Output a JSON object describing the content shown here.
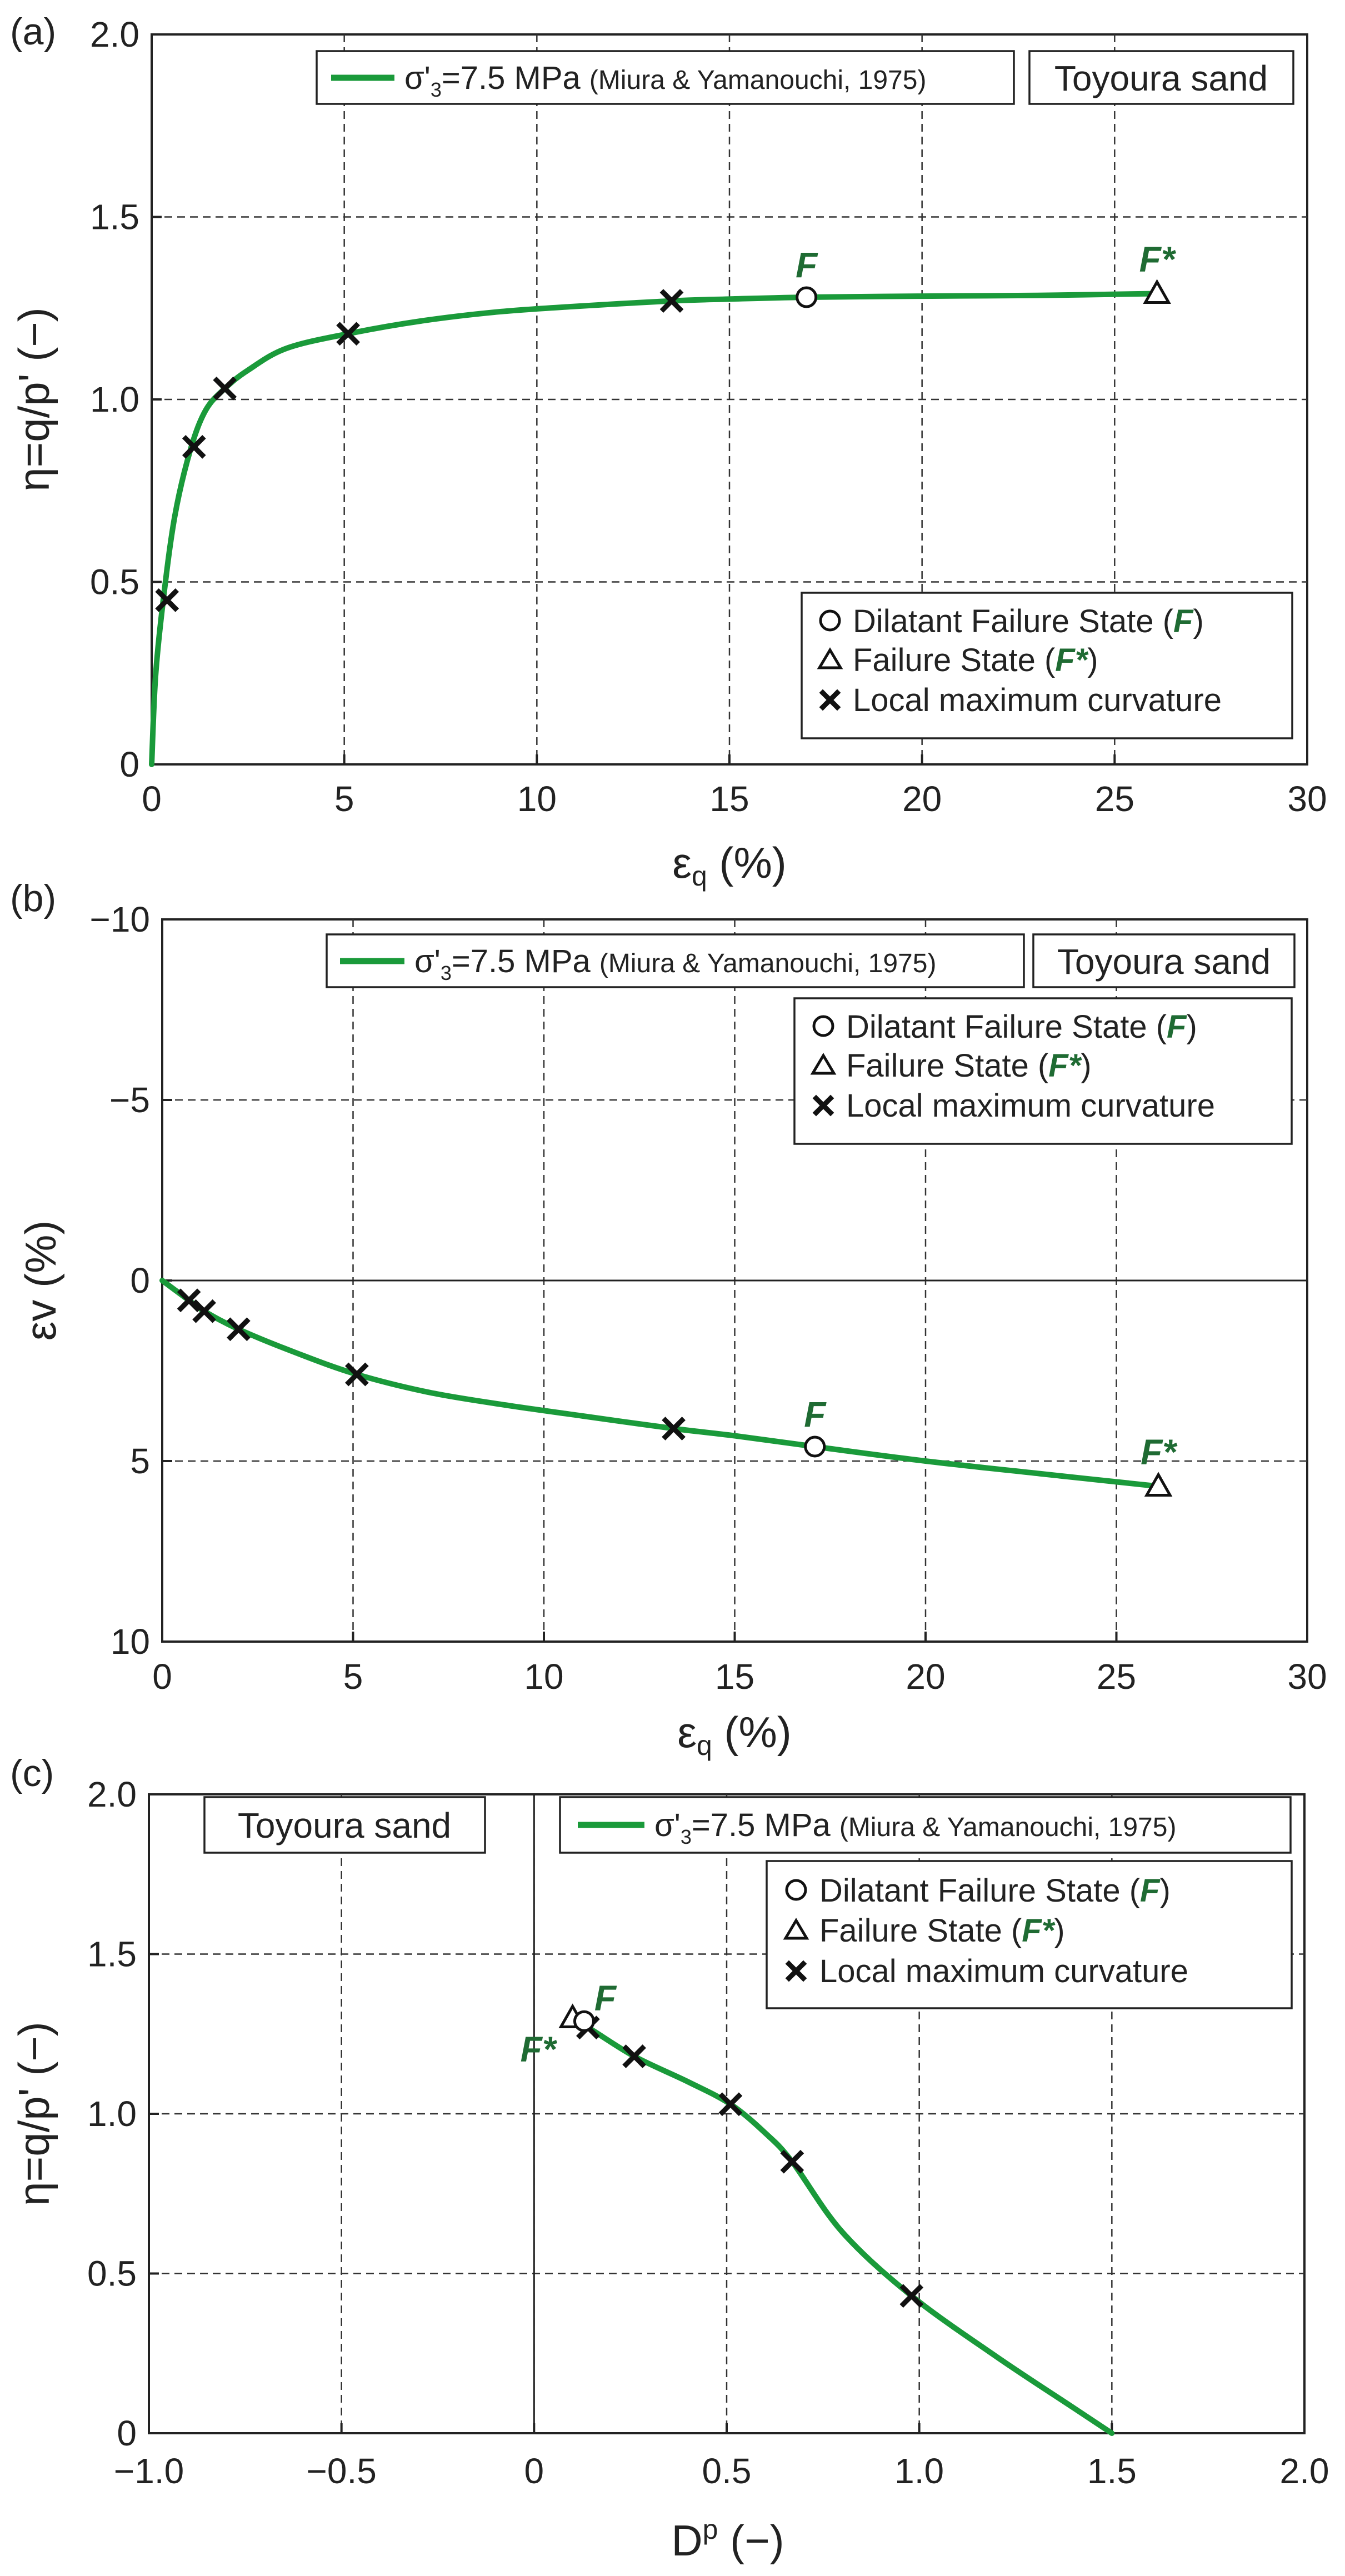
{
  "colors": {
    "curve": "#1a9a3a",
    "failure_label": "#1f6b33",
    "text": "#222222"
  },
  "chart_data": [
    {
      "panel": "(a)",
      "type": "line",
      "box_text": "Toyoura sand",
      "xlabel": "εq (%)",
      "ylabel": "η=q/p' (−)",
      "xlim": [
        0,
        30
      ],
      "ylim": [
        0,
        2.0
      ],
      "xticks": [
        "0",
        "5",
        "10",
        "15",
        "20",
        "25",
        "30"
      ],
      "yticks": [
        "0",
        "0.5",
        "1.0",
        "1.5",
        "2.0"
      ],
      "grid": true,
      "legend_position": "lower-right",
      "series": [
        {
          "name": "σ'3=7.5 MPa (Miura & Yamanouchi, 1975)",
          "x": [
            0,
            0.1,
            0.3,
            0.6,
            1.0,
            1.4,
            1.9,
            2.5,
            3.5,
            5.1,
            7.0,
            9.0,
            11.0,
            13.5,
            15.0,
            17.0,
            20.0,
            23.0,
            26.1
          ],
          "y": [
            0,
            0.24,
            0.45,
            0.68,
            0.86,
            0.97,
            1.03,
            1.08,
            1.14,
            1.18,
            1.215,
            1.24,
            1.255,
            1.27,
            1.275,
            1.28,
            1.283,
            1.285,
            1.29
          ]
        }
      ],
      "markers": {
        "dilatant_failure_F": {
          "x": 17.0,
          "y": 1.28,
          "label": "F"
        },
        "failure_Fstar": {
          "x": 26.1,
          "y": 1.29,
          "label": "F*"
        },
        "local_max_curvature": {
          "x": [
            0.4,
            1.1,
            1.9,
            5.1,
            13.5
          ],
          "y": [
            0.45,
            0.87,
            1.03,
            1.18,
            1.27
          ]
        }
      },
      "legend_entries": [
        "Dilatant Failure State (F)",
        "Failure State (F*)",
        "Local maximum curvature"
      ]
    },
    {
      "panel": "(b)",
      "type": "line",
      "box_text": "Toyoura sand",
      "xlabel": "εq (%)",
      "ylabel": "εv (%)",
      "xlim": [
        0,
        30
      ],
      "ylim": [
        -10,
        10
      ],
      "y_inverted": true,
      "xticks": [
        "0",
        "5",
        "10",
        "15",
        "20",
        "25",
        "30"
      ],
      "yticks": [
        "−10",
        "−5",
        "0",
        "5",
        "10"
      ],
      "grid": true,
      "legend_position": "upper-right",
      "series": [
        {
          "name": "σ'3=7.5 MPa (Miura & Yamanouchi, 1975)",
          "x": [
            0,
            0.7,
            1.1,
            2.0,
            3.5,
            5.1,
            7.0,
            9.0,
            11.0,
            13.4,
            15.0,
            17.1,
            20.0,
            23.0,
            26.1
          ],
          "y": [
            0,
            0.55,
            0.85,
            1.35,
            2.0,
            2.6,
            3.1,
            3.45,
            3.75,
            4.1,
            4.3,
            4.6,
            5.0,
            5.35,
            5.7
          ]
        }
      ],
      "markers": {
        "dilatant_failure_F": {
          "x": 17.1,
          "y": 4.6,
          "label": "F"
        },
        "failure_Fstar": {
          "x": 26.1,
          "y": 5.7,
          "label": "F*"
        },
        "local_max_curvature": {
          "x": [
            0.7,
            1.1,
            2.0,
            5.1,
            13.4
          ],
          "y": [
            0.55,
            0.85,
            1.35,
            2.6,
            4.1
          ]
        }
      },
      "legend_entries": [
        "Dilatant Failure State (F)",
        "Failure State (F*)",
        "Local maximum curvature"
      ]
    },
    {
      "panel": "(c)",
      "type": "line",
      "box_text": "Toyoura sand",
      "xlabel": "Dp (−)",
      "ylabel": "η=q/p' (−)",
      "xlim": [
        -1.0,
        2.0
      ],
      "ylim": [
        0,
        2.0
      ],
      "xticks": [
        "−1.0",
        "−0.5",
        "0",
        "0.5",
        "1.0",
        "1.5",
        "2.0"
      ],
      "yticks": [
        "0",
        "0.5",
        "1.0",
        "1.5",
        "2.0"
      ],
      "grid": true,
      "legend_position": "upper-right",
      "series": [
        {
          "name": "σ'3=7.5 MPa (Miura & Yamanouchi, 1975)",
          "x": [
            0.1,
            0.14,
            0.26,
            0.4,
            0.51,
            0.6,
            0.67,
            0.8,
            0.98,
            1.2,
            1.4,
            1.5
          ],
          "y": [
            1.29,
            1.27,
            1.18,
            1.1,
            1.03,
            0.94,
            0.85,
            0.63,
            0.43,
            0.24,
            0.08,
            0.0
          ]
        }
      ],
      "markers": {
        "dilatant_failure_F": {
          "x": 0.13,
          "y": 1.29,
          "label": "F"
        },
        "failure_Fstar": {
          "x": 0.1,
          "y": 1.3,
          "label": "F*"
        },
        "local_max_curvature": {
          "x": [
            0.14,
            0.26,
            0.51,
            0.67,
            0.98
          ],
          "y": [
            1.27,
            1.18,
            1.03,
            0.85,
            0.43
          ]
        }
      },
      "legend_entries": [
        "Dilatant Failure State (F)",
        "Failure State (F*)",
        "Local maximum curvature"
      ]
    }
  ]
}
